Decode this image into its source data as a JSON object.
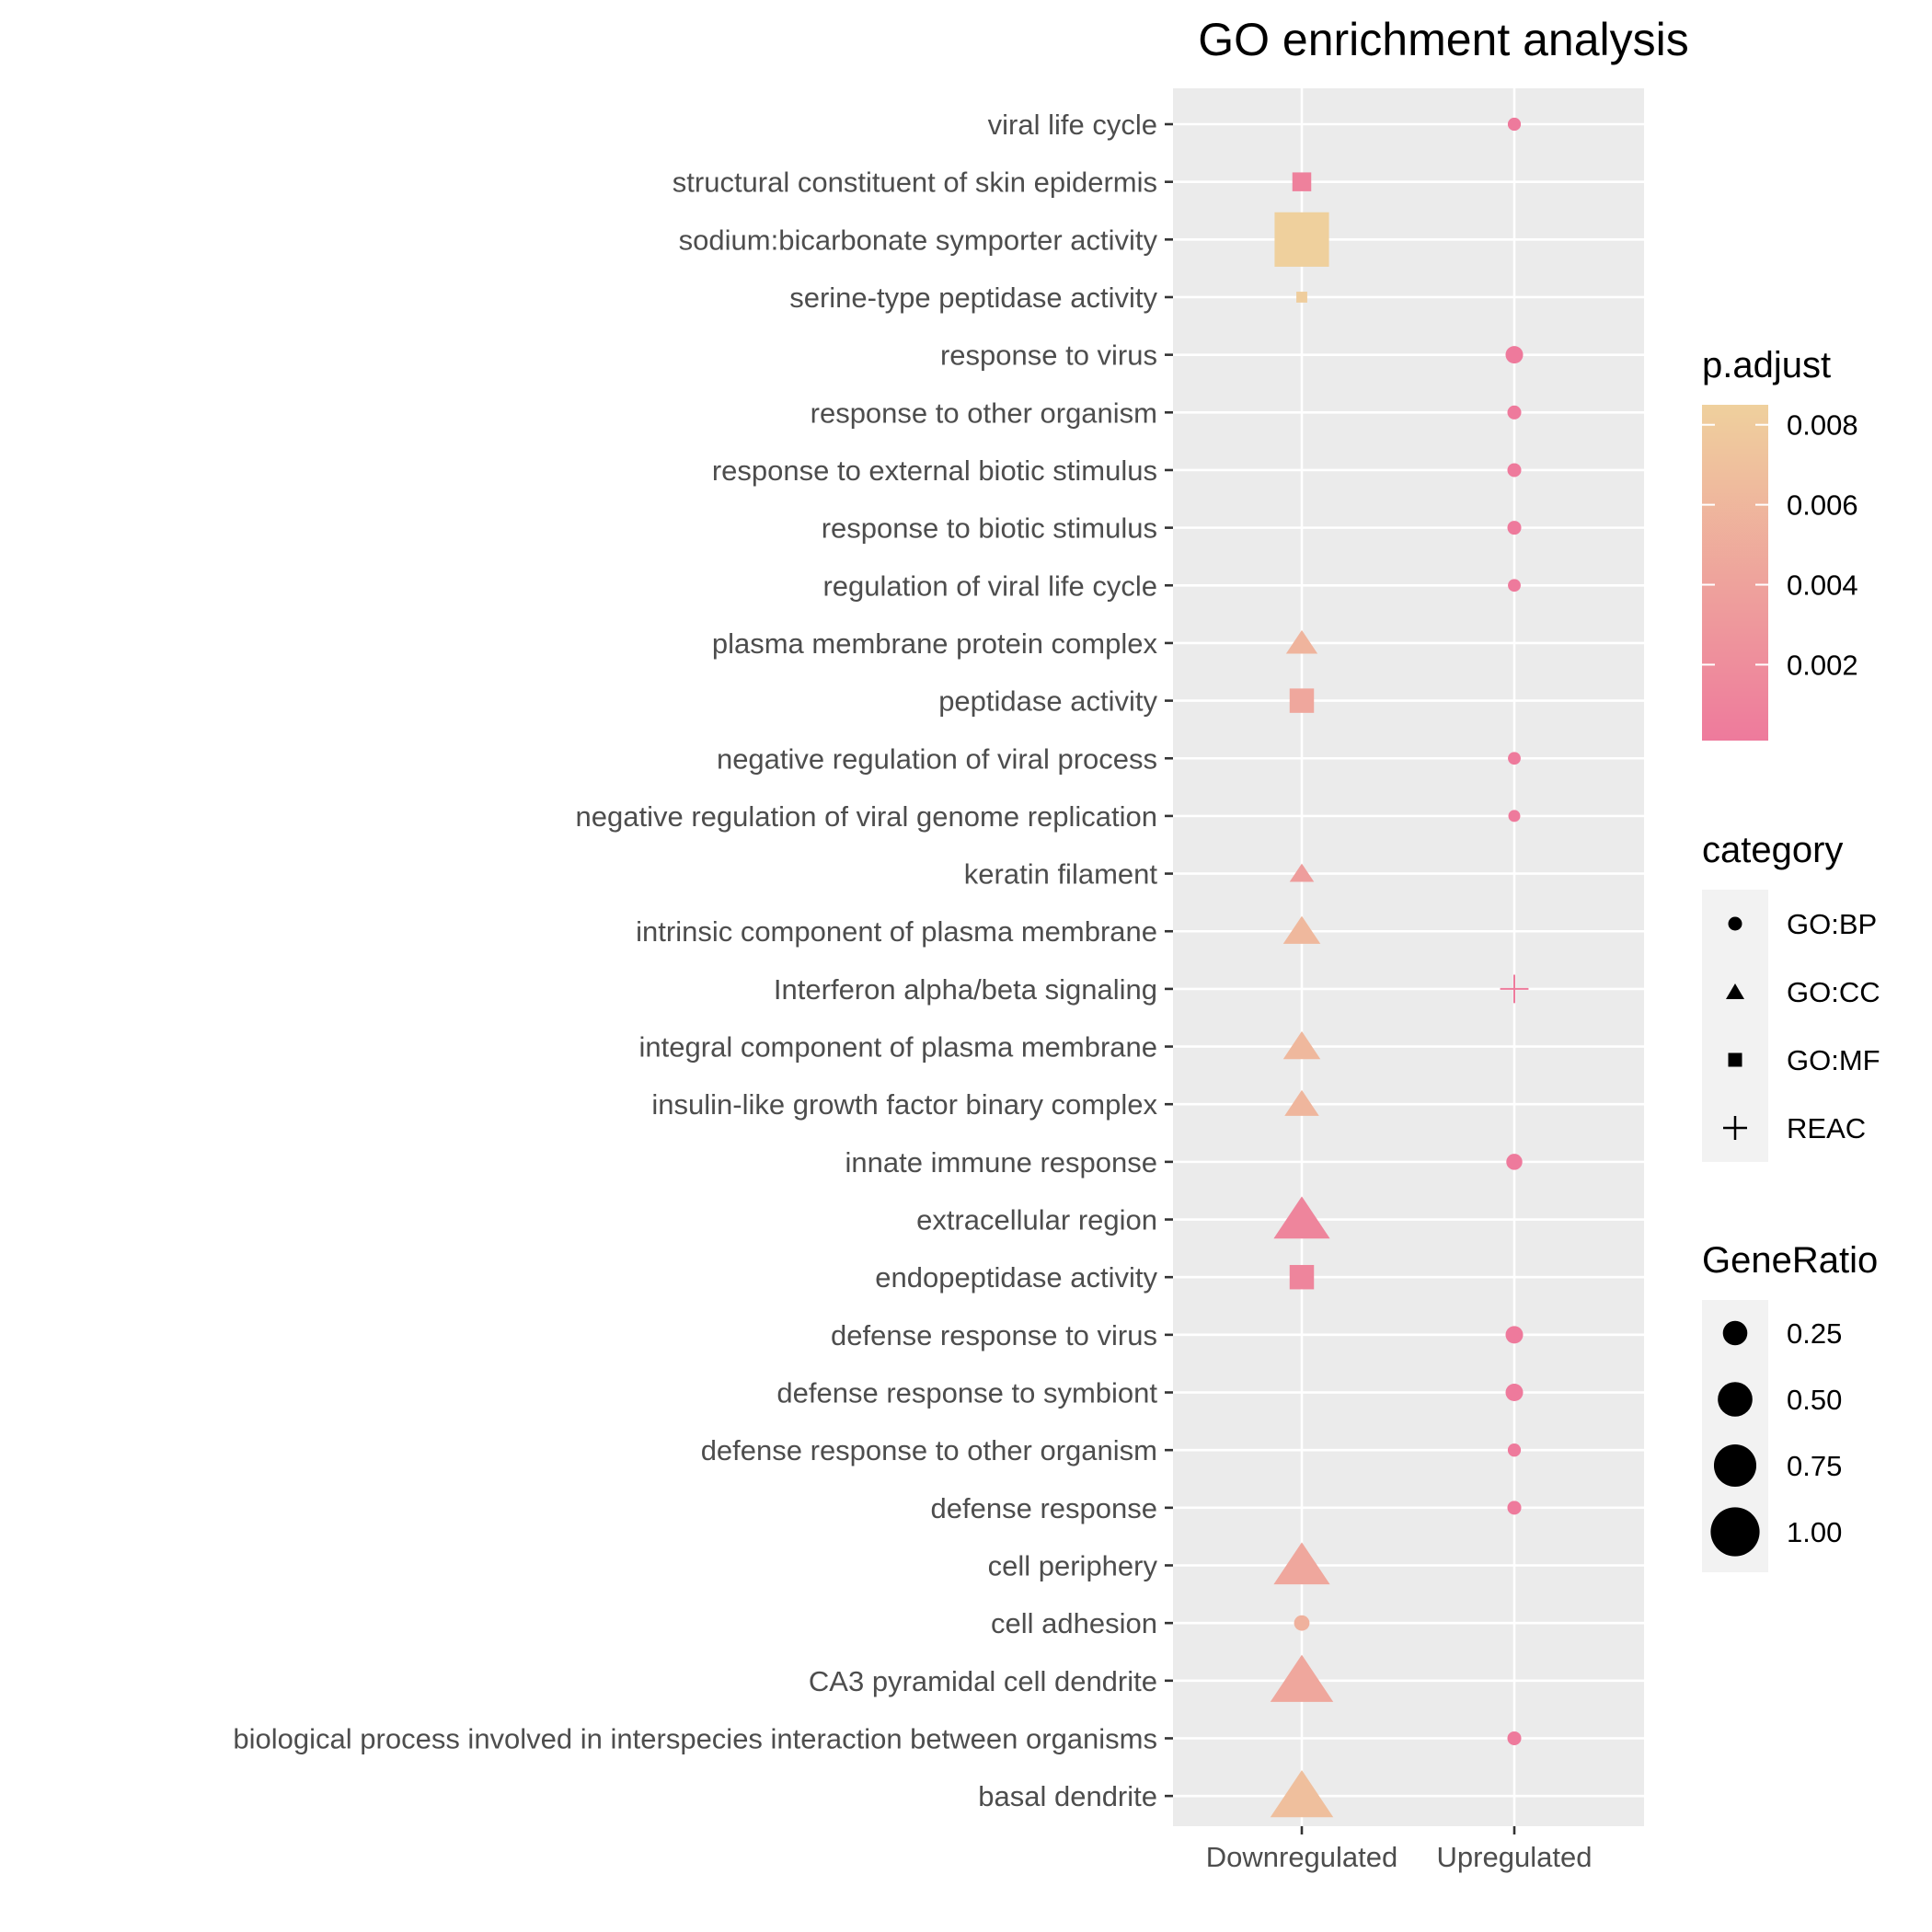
{
  "chart_data": {
    "type": "scatter",
    "title": "GO enrichment analysis",
    "xlabel": "",
    "ylabel": "",
    "grid": true,
    "categories_x": [
      "Downregulated",
      "Upregulated"
    ],
    "terms": [
      "viral life cycle",
      "structural constituent of skin epidermis",
      "sodium:bicarbonate symporter activity",
      "serine-type peptidase activity",
      "response to virus",
      "response to other organism",
      "response to external biotic stimulus",
      "response to biotic stimulus",
      "regulation of viral life cycle",
      "plasma membrane protein complex",
      "peptidase activity",
      "negative regulation of viral process",
      "negative regulation of viral genome replication",
      "keratin filament",
      "intrinsic component of plasma membrane",
      "Interferon alpha/beta signaling",
      "integral component of plasma membrane",
      "insulin-like growth factor binary complex",
      "innate immune response",
      "extracellular region",
      "endopeptidase activity",
      "defense response to virus",
      "defense response to symbiont",
      "defense response to other organism",
      "defense response",
      "cell periphery",
      "cell adhesion",
      "CA3 pyramidal cell dendrite",
      "biological process involved in interspecies interaction between organisms",
      "basal dendrite"
    ],
    "points": [
      {
        "term": "viral life cycle",
        "group": "Upregulated",
        "category": "GO:BP",
        "gene_ratio": 0.18,
        "p_adjust": 0.0001
      },
      {
        "term": "structural constituent of skin epidermis",
        "group": "Downregulated",
        "category": "GO:MF",
        "gene_ratio": 0.12,
        "p_adjust": 0.0008
      },
      {
        "term": "sodium:bicarbonate symporter activity",
        "group": "Downregulated",
        "category": "GO:MF",
        "gene_ratio": 1.0,
        "p_adjust": 0.0085
      },
      {
        "term": "serine-type peptidase activity",
        "group": "Downregulated",
        "category": "GO:MF",
        "gene_ratio": 0.04,
        "p_adjust": 0.0082
      },
      {
        "term": "response to virus",
        "group": "Upregulated",
        "category": "GO:BP",
        "gene_ratio": 0.32,
        "p_adjust": 0.0001
      },
      {
        "term": "response to other organism",
        "group": "Upregulated",
        "category": "GO:BP",
        "gene_ratio": 0.2,
        "p_adjust": 0.0001
      },
      {
        "term": "response to external biotic stimulus",
        "group": "Upregulated",
        "category": "GO:BP",
        "gene_ratio": 0.2,
        "p_adjust": 0.0001
      },
      {
        "term": "response to biotic stimulus",
        "group": "Upregulated",
        "category": "GO:BP",
        "gene_ratio": 0.2,
        "p_adjust": 0.0001
      },
      {
        "term": "regulation of viral life cycle",
        "group": "Upregulated",
        "category": "GO:BP",
        "gene_ratio": 0.17,
        "p_adjust": 0.0001
      },
      {
        "term": "plasma membrane protein complex",
        "group": "Downregulated",
        "category": "GO:CC",
        "gene_ratio": 0.25,
        "p_adjust": 0.0058
      },
      {
        "term": "peptidase activity",
        "group": "Downregulated",
        "category": "GO:MF",
        "gene_ratio": 0.2,
        "p_adjust": 0.0045
      },
      {
        "term": "negative regulation of viral process",
        "group": "Upregulated",
        "category": "GO:BP",
        "gene_ratio": 0.17,
        "p_adjust": 0.0001
      },
      {
        "term": "negative regulation of viral genome replication",
        "group": "Upregulated",
        "category": "GO:BP",
        "gene_ratio": 0.15,
        "p_adjust": 0.0001
      },
      {
        "term": "keratin filament",
        "group": "Downregulated",
        "category": "GO:CC",
        "gene_ratio": 0.15,
        "p_adjust": 0.0035
      },
      {
        "term": "intrinsic component of plasma membrane",
        "group": "Downregulated",
        "category": "GO:CC",
        "gene_ratio": 0.35,
        "p_adjust": 0.0062
      },
      {
        "term": "Interferon alpha/beta signaling",
        "group": "Upregulated",
        "category": "REAC",
        "gene_ratio": 0.35,
        "p_adjust": 0.0002
      },
      {
        "term": "integral component of plasma membrane",
        "group": "Downregulated",
        "category": "GO:CC",
        "gene_ratio": 0.35,
        "p_adjust": 0.0062
      },
      {
        "term": "insulin-like growth factor binary complex",
        "group": "Downregulated",
        "category": "GO:CC",
        "gene_ratio": 0.3,
        "p_adjust": 0.006
      },
      {
        "term": "innate immune response",
        "group": "Upregulated",
        "category": "GO:BP",
        "gene_ratio": 0.27,
        "p_adjust": 0.0001
      },
      {
        "term": "extracellular region",
        "group": "Downregulated",
        "category": "GO:CC",
        "gene_ratio": 0.8,
        "p_adjust": 0.0012
      },
      {
        "term": "endopeptidase activity",
        "group": "Downregulated",
        "category": "GO:MF",
        "gene_ratio": 0.2,
        "p_adjust": 0.0012
      },
      {
        "term": "defense response to virus",
        "group": "Upregulated",
        "category": "GO:BP",
        "gene_ratio": 0.32,
        "p_adjust": 0.0001
      },
      {
        "term": "defense response to symbiont",
        "group": "Upregulated",
        "category": "GO:BP",
        "gene_ratio": 0.32,
        "p_adjust": 0.0001
      },
      {
        "term": "defense response to other organism",
        "group": "Upregulated",
        "category": "GO:BP",
        "gene_ratio": 0.18,
        "p_adjust": 0.0001
      },
      {
        "term": "defense response",
        "group": "Upregulated",
        "category": "GO:BP",
        "gene_ratio": 0.2,
        "p_adjust": 0.0001
      },
      {
        "term": "cell periphery",
        "group": "Downregulated",
        "category": "GO:CC",
        "gene_ratio": 0.8,
        "p_adjust": 0.0045
      },
      {
        "term": "cell adhesion",
        "group": "Downregulated",
        "category": "GO:BP",
        "gene_ratio": 0.25,
        "p_adjust": 0.0055
      },
      {
        "term": "CA3 pyramidal cell dendrite",
        "group": "Downregulated",
        "category": "GO:CC",
        "gene_ratio": 1.0,
        "p_adjust": 0.0045
      },
      {
        "term": "biological process involved in interspecies interaction between organisms",
        "group": "Upregulated",
        "category": "GO:BP",
        "gene_ratio": 0.2,
        "p_adjust": 0.0001
      },
      {
        "term": "basal dendrite",
        "group": "Downregulated",
        "category": "GO:CC",
        "gene_ratio": 1.0,
        "p_adjust": 0.0068
      }
    ],
    "legend_padjust": {
      "title": "p.adjust",
      "ticks": [
        0.008,
        0.006,
        0.004,
        0.002
      ],
      "tick_labels": [
        "0.008",
        "0.006",
        "0.004",
        "0.002"
      ],
      "range": [
        0.0001,
        0.0085
      ],
      "color_low": "#ee7a9c",
      "color_high": "#efd09d"
    },
    "legend_category": {
      "title": "category",
      "items": [
        {
          "label": "GO:BP",
          "shape": "circle"
        },
        {
          "label": "GO:CC",
          "shape": "triangle"
        },
        {
          "label": "GO:MF",
          "shape": "square"
        },
        {
          "label": "REAC",
          "shape": "plus"
        }
      ]
    },
    "legend_generatio": {
      "title": "GeneRatio",
      "values": [
        0.25,
        0.5,
        0.75,
        1.0
      ],
      "labels": [
        "0.25",
        "0.50",
        "0.75",
        "1.00"
      ]
    },
    "legend_position": "right"
  }
}
